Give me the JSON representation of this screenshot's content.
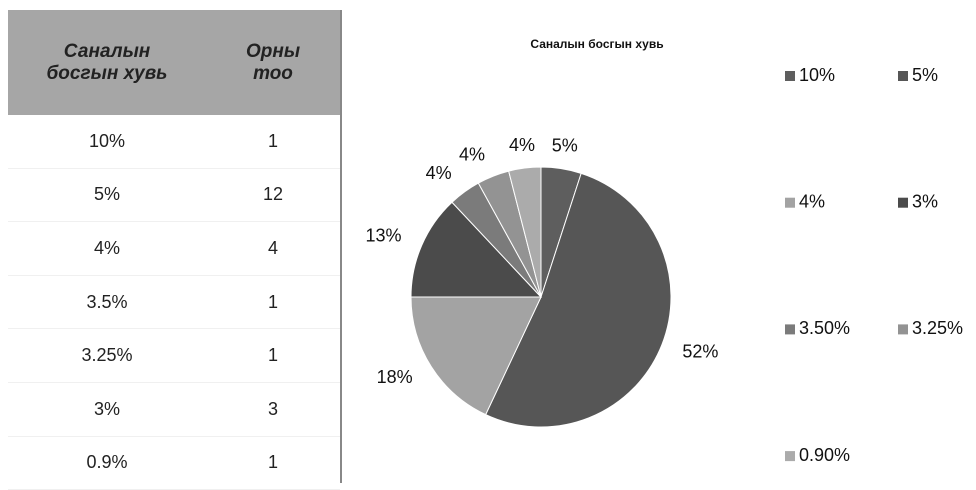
{
  "table": {
    "headers": [
      "Саналын босгын хувь",
      "Орны тоо"
    ],
    "rows": [
      [
        "10%",
        "1"
      ],
      [
        "5%",
        "12"
      ],
      [
        "4%",
        "4"
      ],
      [
        "3.5%",
        "1"
      ],
      [
        "3.25%",
        "1"
      ],
      [
        "3%",
        "3"
      ],
      [
        "0.9%",
        "1"
      ]
    ]
  },
  "chart_data": {
    "type": "pie",
    "title": "Саналын босгын хувь",
    "categories": [
      "10%",
      "5%",
      "4%",
      "3%",
      "3.50%",
      "3.25%",
      "0.90%"
    ],
    "values": [
      5,
      52,
      18,
      13,
      4,
      4,
      4
    ],
    "value_labels": [
      "5%",
      "52%",
      "18%",
      "13%",
      "4%",
      "4%",
      "4%"
    ],
    "colors": [
      "#5e5e5e",
      "#565656",
      "#a3a3a3",
      "#4b4b4b",
      "#7b7b7b",
      "#939393",
      "#ababab"
    ],
    "legend": "right"
  }
}
